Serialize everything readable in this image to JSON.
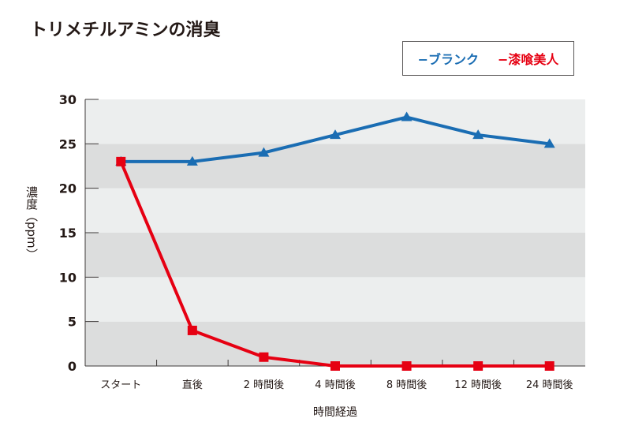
{
  "chart_data": {
    "type": "line",
    "title": "トリメチルアミンの消臭",
    "xlabel": "時間経過",
    "ylabel": "濃度（ppm）",
    "ylim": [
      0,
      30
    ],
    "yticks": [
      0,
      5,
      10,
      15,
      20,
      25,
      30
    ],
    "categories": [
      "スタート",
      "直後",
      "2 時間後",
      "4 時間後",
      "8 時間後",
      "12 時間後",
      "24 時間後"
    ],
    "grid": "alternating horizontal bands",
    "legend_position": "top-right",
    "series": [
      {
        "name": "ブランク",
        "marker": "triangle",
        "color": "#1a6db3",
        "values": [
          23,
          23,
          24,
          26,
          28,
          26,
          25
        ]
      },
      {
        "name": "漆喰美人",
        "marker": "square",
        "color": "#e60012",
        "values": [
          23,
          4,
          1,
          0,
          0,
          0,
          0
        ]
      }
    ]
  }
}
